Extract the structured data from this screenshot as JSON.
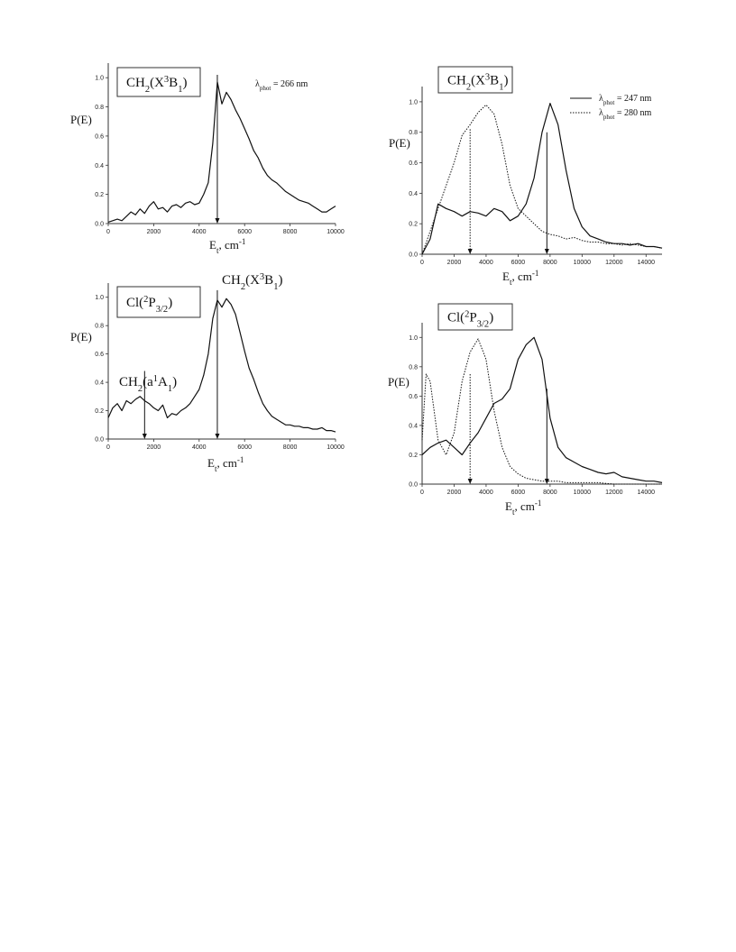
{
  "chart_data": [
    {
      "type": "line",
      "ylabel": "P(E)",
      "xlabel_main": "E",
      "xlabel_sub": "t",
      "xlabel_tail": ", cm",
      "xlabel_sup": "-1",
      "xlim": [
        0,
        10000
      ],
      "ylim": [
        0,
        1.1
      ],
      "xticks": [
        0,
        2000,
        4000,
        6000,
        8000,
        10000
      ],
      "yticks": [
        0.0,
        0.2,
        0.4,
        0.6,
        0.8,
        1.0
      ],
      "boxed_label": {
        "parts": [
          "CH",
          "2",
          "(X",
          "3",
          "B",
          "1",
          ")"
        ]
      },
      "annotation": {
        "parts": [
          "λ",
          "phot",
          " = 266 nm"
        ]
      },
      "arrows": [
        {
          "x": 4800,
          "from": 1.02,
          "to": 0.0
        }
      ],
      "series": [
        {
          "style": "solid",
          "x": [
            0,
            200,
            400,
            600,
            800,
            1000,
            1200,
            1400,
            1600,
            1800,
            2000,
            2200,
            2400,
            2600,
            2800,
            3000,
            3200,
            3400,
            3600,
            3800,
            4000,
            4200,
            4400,
            4600,
            4800,
            5000,
            5200,
            5400,
            5600,
            5800,
            6000,
            6200,
            6400,
            6600,
            6800,
            7000,
            7200,
            7400,
            7600,
            7800,
            8000,
            8200,
            8400,
            8600,
            8800,
            9000,
            9200,
            9400,
            9600,
            9800,
            10000
          ],
          "y": [
            0.01,
            0.02,
            0.03,
            0.02,
            0.05,
            0.08,
            0.06,
            0.1,
            0.07,
            0.12,
            0.15,
            0.1,
            0.11,
            0.08,
            0.12,
            0.13,
            0.11,
            0.14,
            0.15,
            0.13,
            0.14,
            0.2,
            0.28,
            0.55,
            0.97,
            0.82,
            0.9,
            0.85,
            0.78,
            0.72,
            0.65,
            0.58,
            0.5,
            0.45,
            0.38,
            0.33,
            0.3,
            0.28,
            0.25,
            0.22,
            0.2,
            0.18,
            0.16,
            0.15,
            0.14,
            0.12,
            0.1,
            0.08,
            0.08,
            0.1,
            0.12
          ]
        }
      ]
    },
    {
      "type": "line",
      "ylabel": "P(E)",
      "xlabel_main": "E",
      "xlabel_sub": "t",
      "xlabel_tail": ", cm",
      "xlabel_sup": "-1",
      "xlim": [
        0,
        10000
      ],
      "ylim": [
        0,
        1.1
      ],
      "xticks": [
        0,
        2000,
        4000,
        6000,
        8000,
        10000
      ],
      "yticks": [
        0.0,
        0.2,
        0.4,
        0.6,
        0.8,
        1.0
      ],
      "boxed_label": {
        "parts": [
          "Cl(",
          "2",
          "P",
          "3/2",
          ")"
        ]
      },
      "annotation_top": {
        "parts": [
          "CH",
          "2",
          "(X",
          "3",
          "B",
          "1",
          ")"
        ]
      },
      "annotation_left": {
        "parts": [
          "CH",
          "2",
          "(a",
          "1",
          "A",
          "1",
          ")"
        ]
      },
      "arrows": [
        {
          "x": 4800,
          "from": 1.05,
          "to": 0.0
        },
        {
          "x": 1600,
          "from": 0.48,
          "to": 0.0
        }
      ],
      "series": [
        {
          "style": "solid",
          "x": [
            0,
            200,
            400,
            600,
            800,
            1000,
            1200,
            1400,
            1600,
            1800,
            2000,
            2200,
            2400,
            2600,
            2800,
            3000,
            3200,
            3400,
            3600,
            3800,
            4000,
            4200,
            4400,
            4600,
            4800,
            5000,
            5200,
            5400,
            5600,
            5800,
            6000,
            6200,
            6400,
            6600,
            6800,
            7000,
            7200,
            7400,
            7600,
            7800,
            8000,
            8200,
            8400,
            8600,
            8800,
            9000,
            9200,
            9400,
            9600,
            9800,
            10000
          ],
          "y": [
            0.15,
            0.22,
            0.25,
            0.2,
            0.27,
            0.25,
            0.28,
            0.3,
            0.27,
            0.25,
            0.22,
            0.2,
            0.24,
            0.15,
            0.18,
            0.17,
            0.2,
            0.22,
            0.25,
            0.3,
            0.35,
            0.45,
            0.6,
            0.85,
            0.98,
            0.93,
            0.99,
            0.95,
            0.88,
            0.75,
            0.62,
            0.5,
            0.42,
            0.33,
            0.25,
            0.2,
            0.16,
            0.14,
            0.12,
            0.1,
            0.1,
            0.09,
            0.09,
            0.08,
            0.08,
            0.07,
            0.07,
            0.08,
            0.06,
            0.06,
            0.05
          ]
        }
      ]
    },
    {
      "type": "line",
      "ylabel": "P(E)",
      "xlabel_main": "E",
      "xlabel_sub": "t",
      "xlabel_tail": ", cm",
      "xlabel_sup": "-1",
      "xlim": [
        0,
        15000
      ],
      "ylim": [
        0,
        1.1
      ],
      "xticks": [
        0,
        2000,
        4000,
        6000,
        8000,
        10000,
        12000,
        14000
      ],
      "yticks": [
        0.0,
        0.2,
        0.4,
        0.6,
        0.8,
        1.0
      ],
      "boxed_label": {
        "parts": [
          "CH",
          "2",
          "(X",
          "3",
          "B",
          "1",
          ")"
        ]
      },
      "legend": [
        {
          "style": "solid",
          "parts": [
            "λ",
            "phot",
            " = 247 nm"
          ]
        },
        {
          "style": "dotted",
          "parts": [
            "λ",
            "phot",
            " = 280 nm"
          ]
        }
      ],
      "arrows": [
        {
          "x": 3000,
          "from": 0.82,
          "to": 0.0,
          "style": "dotted"
        },
        {
          "x": 7800,
          "from": 0.8,
          "to": 0.0,
          "style": "solid"
        }
      ],
      "series": [
        {
          "style": "solid",
          "x": [
            0,
            500,
            1000,
            1500,
            2000,
            2500,
            3000,
            3500,
            4000,
            4500,
            5000,
            5500,
            6000,
            6500,
            7000,
            7500,
            8000,
            8500,
            9000,
            9500,
            10000,
            10500,
            11000,
            11500,
            12000,
            12500,
            13000,
            13500,
            14000,
            14500,
            15000
          ],
          "y": [
            0.0,
            0.1,
            0.33,
            0.3,
            0.28,
            0.25,
            0.28,
            0.27,
            0.25,
            0.3,
            0.28,
            0.22,
            0.25,
            0.33,
            0.5,
            0.8,
            0.99,
            0.85,
            0.55,
            0.3,
            0.18,
            0.12,
            0.1,
            0.08,
            0.07,
            0.07,
            0.06,
            0.07,
            0.05,
            0.05,
            0.04
          ]
        },
        {
          "style": "dotted",
          "x": [
            0,
            500,
            1000,
            1500,
            2000,
            2500,
            3000,
            3500,
            4000,
            4500,
            5000,
            5500,
            6000,
            6500,
            7000,
            7500,
            8000,
            8500,
            9000,
            9500,
            10000,
            10500,
            11000,
            11500,
            12000,
            12500,
            13000,
            13500,
            14000,
            14500,
            15000
          ],
          "y": [
            0.0,
            0.15,
            0.3,
            0.45,
            0.6,
            0.78,
            0.85,
            0.93,
            0.98,
            0.92,
            0.72,
            0.45,
            0.3,
            0.25,
            0.2,
            0.15,
            0.13,
            0.12,
            0.1,
            0.11,
            0.09,
            0.08,
            0.08,
            0.07,
            0.07,
            0.06,
            0.07,
            0.06,
            0.05,
            0.05,
            0.04
          ]
        }
      ]
    },
    {
      "type": "line",
      "ylabel": "P(E)",
      "xlabel_main": "E",
      "xlabel_sub": "t",
      "xlabel_tail": ", cm",
      "xlabel_sup": "-1",
      "xlim": [
        0,
        15000
      ],
      "ylim": [
        0,
        1.1
      ],
      "xticks": [
        0,
        2000,
        4000,
        6000,
        8000,
        10000,
        12000,
        14000
      ],
      "yticks": [
        0.0,
        0.2,
        0.4,
        0.6,
        0.8,
        1.0
      ],
      "boxed_label": {
        "parts": [
          "Cl(",
          "2",
          "P",
          "3/2",
          ")"
        ]
      },
      "arrows": [
        {
          "x": 3000,
          "from": 0.75,
          "to": 0.0,
          "style": "dotted"
        },
        {
          "x": 7800,
          "from": 0.65,
          "to": 0.0,
          "style": "solid"
        }
      ],
      "series": [
        {
          "style": "solid",
          "x": [
            0,
            500,
            1000,
            1500,
            2000,
            2500,
            3000,
            3500,
            4000,
            4500,
            5000,
            5500,
            6000,
            6500,
            7000,
            7500,
            8000,
            8500,
            9000,
            9500,
            10000,
            10500,
            11000,
            11500,
            12000,
            12500,
            13000,
            13500,
            14000,
            14500,
            15000
          ],
          "y": [
            0.2,
            0.25,
            0.28,
            0.3,
            0.25,
            0.2,
            0.28,
            0.35,
            0.45,
            0.55,
            0.58,
            0.65,
            0.85,
            0.95,
            1.0,
            0.85,
            0.45,
            0.25,
            0.18,
            0.15,
            0.12,
            0.1,
            0.08,
            0.07,
            0.08,
            0.05,
            0.04,
            0.03,
            0.02,
            0.02,
            0.01
          ]
        },
        {
          "style": "dotted",
          "x": [
            0,
            250,
            500,
            750,
            1000,
            1500,
            2000,
            2500,
            3000,
            3500,
            4000,
            4500,
            5000,
            5500,
            6000,
            6500,
            7000,
            7500,
            8000,
            8500,
            9000,
            9500,
            10000,
            11000,
            12000,
            13000,
            14000,
            15000
          ],
          "y": [
            0.3,
            0.75,
            0.7,
            0.5,
            0.3,
            0.2,
            0.35,
            0.7,
            0.9,
            0.99,
            0.85,
            0.5,
            0.25,
            0.12,
            0.07,
            0.04,
            0.03,
            0.02,
            0.02,
            0.02,
            0.01,
            0.01,
            0.01,
            0.01,
            0.0,
            0.0,
            0.0,
            0.0
          ]
        }
      ]
    }
  ]
}
